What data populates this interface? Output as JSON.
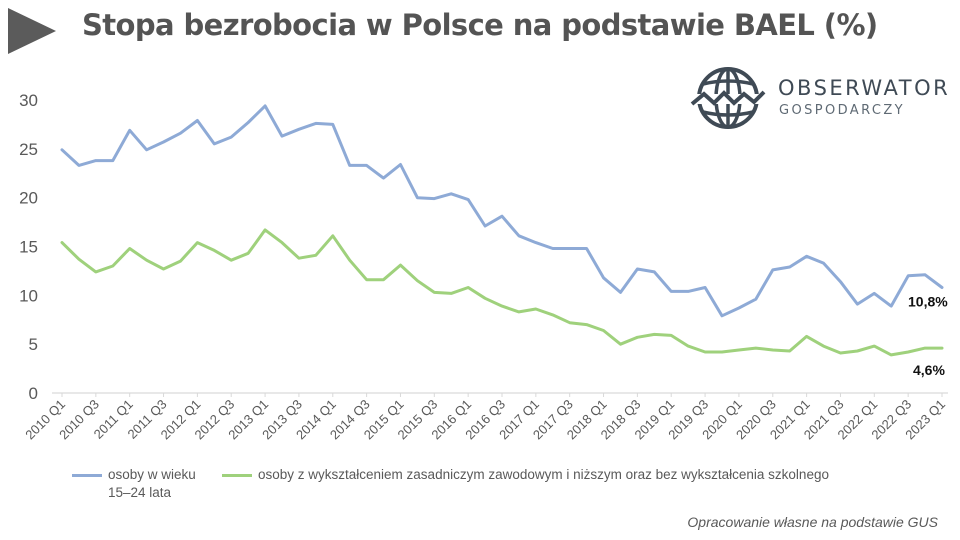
{
  "header": {
    "title": "Stopa bezrobocia w Polsce na podstawie BAEL (%)"
  },
  "logo": {
    "name": "OBSERWATOR",
    "sub": "GOSPODARCZY",
    "icon": "globe-icon"
  },
  "colors": {
    "series_youth": "#8eaad6",
    "series_vocational": "#9fd17c",
    "axis": "#d9d9d9",
    "text": "#595959"
  },
  "chart_data": {
    "type": "line",
    "x": [
      "2010 Q1",
      "2010 Q2",
      "2010 Q3",
      "2010 Q4",
      "2011 Q1",
      "2011 Q2",
      "2011 Q3",
      "2011 Q4",
      "2012 Q1",
      "2012 Q2",
      "2012 Q3",
      "2012 Q4",
      "2013 Q1",
      "2013 Q2",
      "2013 Q3",
      "2013 Q4",
      "2014 Q1",
      "2014 Q2",
      "2014 Q3",
      "2014 Q4",
      "2015 Q1",
      "2015 Q2",
      "2015 Q3",
      "2015 Q4",
      "2016 Q1",
      "2016 Q2",
      "2016 Q3",
      "2016 Q4",
      "2017 Q1",
      "2017 Q2",
      "2017 Q3",
      "2017 Q4",
      "2018 Q1",
      "2018 Q2",
      "2018 Q3",
      "2018 Q4",
      "2019 Q1",
      "2019 Q2",
      "2019 Q3",
      "2019 Q4",
      "2020 Q1",
      "2020 Q2",
      "2020 Q3",
      "2020 Q4",
      "2021 Q1",
      "2021 Q2",
      "2021 Q3",
      "2021 Q4",
      "2022 Q1",
      "2022 Q2",
      "2022 Q3",
      "2022 Q4",
      "2023 Q1"
    ],
    "tick_labels": [
      "2010 Q1",
      "2010 Q3",
      "2011 Q1",
      "2011 Q3",
      "2012 Q1",
      "2012 Q3",
      "2013 Q1",
      "2013 Q3",
      "2014 Q1",
      "2014 Q3",
      "2015 Q1",
      "2015 Q3",
      "2016 Q1",
      "2016 Q3",
      "2017 Q1",
      "2017 Q3",
      "2018 Q1",
      "2018 Q3",
      "2019 Q1",
      "2019 Q3",
      "2020 Q1",
      "2020 Q3",
      "2021 Q1",
      "2021 Q3",
      "2022 Q1",
      "2022 Q3",
      "2023 Q1"
    ],
    "series": [
      {
        "name": "osoby w wieku 15–24 lata",
        "name_line1": "osoby w wieku",
        "name_line2": "15–24 lata",
        "color": "#8eaad6",
        "end_label": "10,8%",
        "values": [
          24.9,
          23.3,
          23.8,
          23.8,
          26.9,
          24.9,
          25.7,
          26.6,
          27.9,
          25.5,
          26.2,
          27.7,
          29.4,
          26.3,
          27.0,
          27.6,
          27.5,
          23.3,
          23.3,
          22.0,
          23.4,
          20.0,
          19.9,
          20.4,
          19.8,
          17.1,
          18.1,
          16.1,
          15.4,
          14.8,
          14.8,
          14.8,
          11.8,
          10.3,
          12.7,
          12.4,
          10.4,
          10.4,
          10.8,
          7.9,
          8.7,
          9.6,
          12.6,
          12.9,
          14.0,
          13.3,
          11.4,
          9.1,
          10.2,
          8.9,
          12.0,
          12.1,
          10.8
        ]
      },
      {
        "name": "osoby z wykształceniem zasadniczym zawodowym i niższym oraz bez wykształcenia szkolnego",
        "color": "#9fd17c",
        "end_label": "4,6%",
        "values": [
          15.4,
          13.7,
          12.4,
          13.0,
          14.8,
          13.6,
          12.7,
          13.5,
          15.4,
          14.6,
          13.6,
          14.3,
          16.7,
          15.4,
          13.8,
          14.1,
          16.1,
          13.6,
          11.6,
          11.6,
          13.1,
          11.5,
          10.3,
          10.2,
          10.8,
          9.7,
          8.9,
          8.3,
          8.6,
          8.0,
          7.2,
          7.0,
          6.4,
          5.0,
          5.7,
          6.0,
          5.9,
          4.8,
          4.2,
          4.2,
          4.4,
          4.6,
          4.4,
          4.3,
          5.8,
          4.8,
          4.1,
          4.3,
          4.8,
          3.9,
          4.2,
          4.6,
          4.6
        ]
      }
    ],
    "y_ticks": [
      "0",
      "5",
      "10",
      "15",
      "20",
      "25",
      "30"
    ],
    "ylim": [
      0,
      30
    ],
    "grid": false,
    "legend": "bottom"
  },
  "footer": {
    "source": "Opracowanie własne na podstawie GUS"
  }
}
